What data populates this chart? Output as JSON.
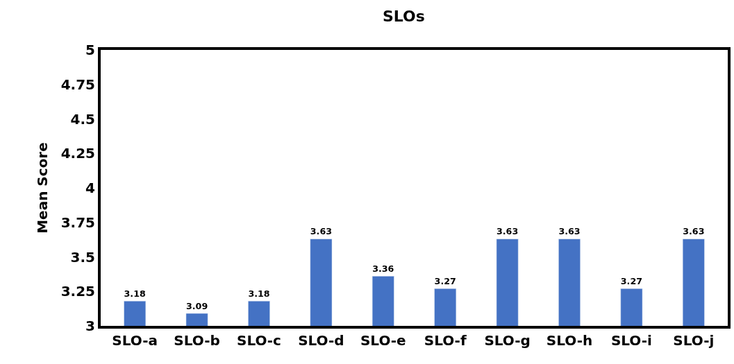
{
  "chart_data": {
    "type": "bar",
    "title": "SLOs",
    "ylabel": "Mean Score",
    "categories": [
      "SLO-a",
      "SLO-b",
      "SLO-c",
      "SLO-d",
      "SLO-e",
      "SLO-f",
      "SLO-g",
      "SLO-h",
      "SLO-i",
      "SLO-j"
    ],
    "values": [
      3.18,
      3.09,
      3.18,
      3.63,
      3.36,
      3.27,
      3.63,
      3.63,
      3.27,
      3.63
    ],
    "color": "#4472c4",
    "ylim": [
      3,
      5
    ],
    "yticks": [
      3,
      3.25,
      3.5,
      3.75,
      4,
      4.25,
      4.5,
      4.75,
      5
    ],
    "data_labels": true
  }
}
